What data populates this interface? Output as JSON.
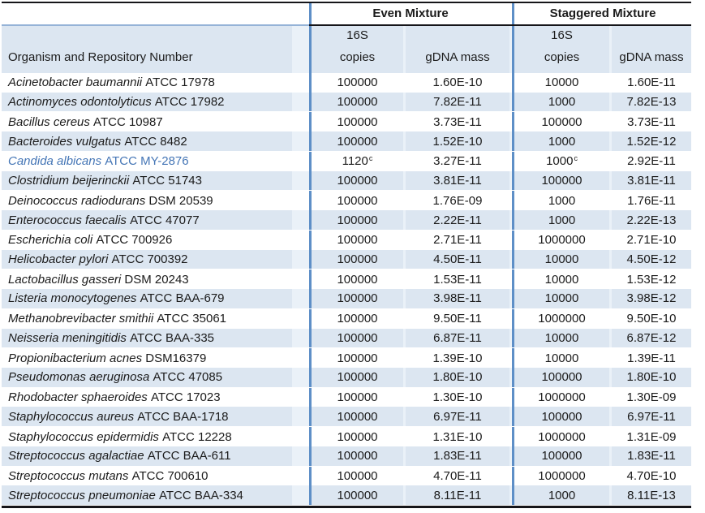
{
  "header": {
    "organism_col": "Organism and Repository Number",
    "even_group": "Even Mixture",
    "staggered_group": "Staggered Mixture",
    "sub_16s": "16S",
    "sub_copies": "copies",
    "sub_mass": "gDNA mass"
  },
  "colors": {
    "row_alt": "#dce6f1",
    "row_gap": "#eaf1f8",
    "vline": "#5e8fc7",
    "hline_blue": "#95b3d7",
    "border_dark": "#151519",
    "text": "#1b1b1b",
    "highlight_text": "#4576b6"
  },
  "footnote_marker": "c",
  "rows": [
    {
      "name": "Acinetobacter baumannii",
      "id": "ATCC 17978",
      "even_copies": "100000",
      "even_sup": "",
      "even_mass": "1.60E-10",
      "stag_copies": "10000",
      "stag_sup": "",
      "stag_mass": "1.60E-11",
      "highlight": false
    },
    {
      "name": "Actinomyces odontolyticus",
      "id": "ATCC 17982",
      "even_copies": "100000",
      "even_sup": "",
      "even_mass": "7.82E-11",
      "stag_copies": "1000",
      "stag_sup": "",
      "stag_mass": "7.82E-13",
      "highlight": false
    },
    {
      "name": "Bacillus cereus",
      "id": "ATCC 10987",
      "even_copies": "100000",
      "even_sup": "",
      "even_mass": "3.73E-11",
      "stag_copies": "100000",
      "stag_sup": "",
      "stag_mass": "3.73E-11",
      "highlight": false
    },
    {
      "name": "Bacteroides vulgatus",
      "id": "ATCC 8482",
      "even_copies": "100000",
      "even_sup": "",
      "even_mass": "1.52E-10",
      "stag_copies": "1000",
      "stag_sup": "",
      "stag_mass": "1.52E-12",
      "highlight": false
    },
    {
      "name": "Candida albicans",
      "id": "ATCC MY-2876",
      "even_copies": "1120",
      "even_sup": "c",
      "even_mass": "3.27E-11",
      "stag_copies": "1000",
      "stag_sup": "c",
      "stag_mass": "2.92E-11",
      "highlight": true
    },
    {
      "name": "Clostridium beijerinckii",
      "id": "ATCC 51743",
      "even_copies": "100000",
      "even_sup": "",
      "even_mass": "3.81E-11",
      "stag_copies": "100000",
      "stag_sup": "",
      "stag_mass": "3.81E-11",
      "highlight": false
    },
    {
      "name": "Deinococcus radiodurans",
      "id": "DSM 20539",
      "even_copies": "100000",
      "even_sup": "",
      "even_mass": "1.76E-09",
      "stag_copies": "1000",
      "stag_sup": "",
      "stag_mass": "1.76E-11",
      "highlight": false
    },
    {
      "name": "Enterococcus faecalis",
      "id": "ATCC 47077",
      "even_copies": "100000",
      "even_sup": "",
      "even_mass": "2.22E-11",
      "stag_copies": "1000",
      "stag_sup": "",
      "stag_mass": "2.22E-13",
      "highlight": false
    },
    {
      "name": "Escherichia coli",
      "id": "ATCC 700926",
      "even_copies": "100000",
      "even_sup": "",
      "even_mass": "2.71E-11",
      "stag_copies": "1000000",
      "stag_sup": "",
      "stag_mass": "2.71E-10",
      "highlight": false
    },
    {
      "name": "Helicobacter pylori",
      "id": "ATCC 700392",
      "even_copies": "100000",
      "even_sup": "",
      "even_mass": "4.50E-11",
      "stag_copies": "10000",
      "stag_sup": "",
      "stag_mass": "4.50E-12",
      "highlight": false
    },
    {
      "name": "Lactobacillus gasseri",
      "id": "DSM 20243",
      "even_copies": "100000",
      "even_sup": "",
      "even_mass": "1.53E-11",
      "stag_copies": "10000",
      "stag_sup": "",
      "stag_mass": "1.53E-12",
      "highlight": false
    },
    {
      "name": "Listeria monocytogenes",
      "id": "ATCC BAA-679",
      "even_copies": "100000",
      "even_sup": "",
      "even_mass": "3.98E-11",
      "stag_copies": "10000",
      "stag_sup": "",
      "stag_mass": "3.98E-12",
      "highlight": false
    },
    {
      "name": "Methanobrevibacter smithii",
      "id": "ATCC 35061",
      "even_copies": "100000",
      "even_sup": "",
      "even_mass": "9.50E-11",
      "stag_copies": "1000000",
      "stag_sup": "",
      "stag_mass": "9.50E-10",
      "highlight": false
    },
    {
      "name": "Neisseria meningitidis",
      "id": "ATCC BAA-335",
      "even_copies": "100000",
      "even_sup": "",
      "even_mass": "6.87E-11",
      "stag_copies": "10000",
      "stag_sup": "",
      "stag_mass": "6.87E-12",
      "highlight": false
    },
    {
      "name": "Propionibacterium acnes",
      "id": "DSM16379",
      "even_copies": "100000",
      "even_sup": "",
      "even_mass": "1.39E-10",
      "stag_copies": "10000",
      "stag_sup": "",
      "stag_mass": "1.39E-11",
      "highlight": false
    },
    {
      "name": "Pseudomonas aeruginosa",
      "id": "ATCC 47085",
      "even_copies": "100000",
      "even_sup": "",
      "even_mass": "1.80E-10",
      "stag_copies": "100000",
      "stag_sup": "",
      "stag_mass": "1.80E-10",
      "highlight": false
    },
    {
      "name": "Rhodobacter sphaeroides",
      "id": "ATCC 17023",
      "even_copies": "100000",
      "even_sup": "",
      "even_mass": "1.30E-10",
      "stag_copies": "1000000",
      "stag_sup": "",
      "stag_mass": "1.30E-09",
      "highlight": false
    },
    {
      "name": "Staphylococcus aureus",
      "id": "ATCC BAA-1718",
      "even_copies": "100000",
      "even_sup": "",
      "even_mass": "6.97E-11",
      "stag_copies": "100000",
      "stag_sup": "",
      "stag_mass": "6.97E-11",
      "highlight": false
    },
    {
      "name": "Staphylococcus epidermidis",
      "id": "ATCC 12228",
      "even_copies": "100000",
      "even_sup": "",
      "even_mass": "1.31E-10",
      "stag_copies": "1000000",
      "stag_sup": "",
      "stag_mass": "1.31E-09",
      "highlight": false
    },
    {
      "name": "Streptococcus agalactiae",
      "id": "ATCC BAA-611",
      "even_copies": "100000",
      "even_sup": "",
      "even_mass": "1.83E-11",
      "stag_copies": "100000",
      "stag_sup": "",
      "stag_mass": "1.83E-11",
      "highlight": false
    },
    {
      "name": "Streptococcus mutans",
      "id": "ATCC 700610",
      "even_copies": "100000",
      "even_sup": "",
      "even_mass": "4.70E-11",
      "stag_copies": "1000000",
      "stag_sup": "",
      "stag_mass": "4.70E-10",
      "highlight": false
    },
    {
      "name": "Streptococcus pneumoniae",
      "id": "ATCC BAA-334",
      "even_copies": "100000",
      "even_sup": "",
      "even_mass": "8.11E-11",
      "stag_copies": "1000",
      "stag_sup": "",
      "stag_mass": "8.11E-13",
      "highlight": false
    }
  ]
}
